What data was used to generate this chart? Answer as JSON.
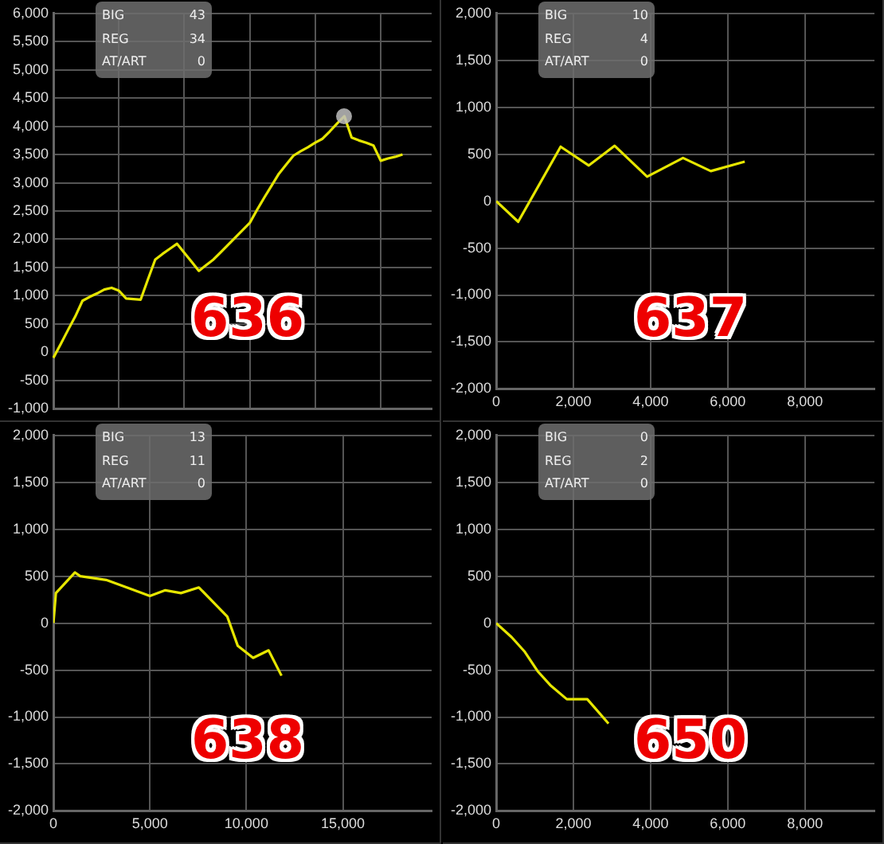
{
  "chart_data": [
    {
      "type": "line",
      "categories": [
        null,
        null,
        null,
        null,
        null,
        null,
        null,
        null,
        null,
        null,
        null,
        null,
        null,
        null,
        null,
        null,
        null,
        null,
        null,
        null,
        null,
        null,
        null,
        null,
        null,
        null,
        null,
        null,
        null,
        null,
        null,
        null,
        null,
        null,
        null,
        null,
        null,
        null,
        null,
        null,
        null,
        null,
        null,
        null,
        null,
        null,
        null,
        null,
        null,
        null,
        null,
        null,
        null
      ],
      "series": [
        {
          "color": "#e6e600",
          "values": [
            -100,
            140,
            390,
            630,
            910,
            980,
            1040,
            1110,
            1140,
            1090,
            950,
            940,
            930,
            1290,
            1640,
            1740,
            1830,
            1920,
            1760,
            1600,
            1440,
            1540,
            1640,
            1770,
            1900,
            2030,
            2160,
            2290,
            2520,
            2740,
            2950,
            3160,
            3320,
            3480,
            3560,
            3630,
            3710,
            3780,
            3910,
            4050,
            4180,
            3800,
            3750,
            3710,
            3660,
            3390,
            3430,
            3460,
            3500,
            null,
            null,
            null,
            null
          ]
        }
      ],
      "ylim": [
        -1000,
        6000
      ],
      "yticks": [
        {
          "value": -1000,
          "label": "-1,000"
        },
        {
          "value": -500,
          "label": "-500"
        },
        {
          "value": 0,
          "label": "0"
        },
        {
          "value": 500,
          "label": "500"
        },
        {
          "value": 1000,
          "label": "1,000"
        },
        {
          "value": 1500,
          "label": "1,500"
        },
        {
          "value": 2000,
          "label": "2,000"
        },
        {
          "value": 2500,
          "label": "2,500"
        },
        {
          "value": 3000,
          "label": "3,000"
        },
        {
          "value": 3500,
          "label": "3,500"
        },
        {
          "value": 4000,
          "label": "4,000"
        },
        {
          "value": 4500,
          "label": "4,500"
        },
        {
          "value": 5000,
          "label": "5,000"
        },
        {
          "value": 5500,
          "label": "5,500"
        },
        {
          "value": 6000,
          "label": "6,000"
        }
      ],
      "tick_labels": "y",
      "grid": true,
      "legend": false,
      "marker": "none",
      "annotations": [
        "BIG",
        "43",
        "REG",
        "34",
        "AT/ART",
        "0",
        "636"
      ]
    },
    {
      "type": "line",
      "x": [
        0,
        570,
        1670,
        2400,
        3070,
        3910,
        4840,
        5560,
        6440
      ],
      "series": [
        {
          "color": "#e6e600",
          "values": [
            0,
            -220,
            580,
            380,
            590,
            260,
            460,
            320,
            420
          ]
        }
      ],
      "xlim": [
        0,
        9800
      ],
      "xticks": [
        {
          "value": 0,
          "label": "0"
        },
        {
          "value": 2000,
          "label": "2,000"
        },
        {
          "value": 4000,
          "label": "4,000"
        },
        {
          "value": 6000,
          "label": "6,000"
        },
        {
          "value": 8000,
          "label": "8,000"
        }
      ],
      "ylim": [
        -2000,
        2000
      ],
      "yticks": [
        {
          "value": -2000,
          "label": "-2,000"
        },
        {
          "value": -1500,
          "label": "-1,500"
        },
        {
          "value": -1000,
          "label": "-1,000"
        },
        {
          "value": -500,
          "label": "-500"
        },
        {
          "value": 0,
          "label": "0"
        },
        {
          "value": 500,
          "label": "500"
        },
        {
          "value": 1000,
          "label": "1,000"
        },
        {
          "value": 1500,
          "label": "1,500"
        },
        {
          "value": 2000,
          "label": "2,000"
        }
      ],
      "grid": true,
      "legend": false,
      "marker": "none",
      "annotations": [
        "BIG",
        "10",
        "REG",
        "4",
        "AT/ART",
        "0",
        "637"
      ]
    },
    {
      "type": "line",
      "x": [
        0,
        130,
        1120,
        1390,
        2730,
        3800,
        5000,
        5800,
        6610,
        7540,
        9010,
        9550,
        10350,
        11150,
        11820
      ],
      "series": [
        {
          "color": "#e6e600",
          "values": [
            0,
            320,
            540,
            500,
            460,
            380,
            290,
            350,
            320,
            380,
            70,
            -240,
            -370,
            -290,
            -560
          ]
        }
      ],
      "xlim": [
        0,
        19600
      ],
      "xticks": [
        {
          "value": 0,
          "label": "0"
        },
        {
          "value": 5000,
          "label": "5,000"
        },
        {
          "value": 10000,
          "label": "10,000"
        },
        {
          "value": 15000,
          "label": "15,000"
        }
      ],
      "ylim": [
        -2000,
        2000
      ],
      "yticks": [
        {
          "value": -2000,
          "label": "-2,000"
        },
        {
          "value": -1500,
          "label": "-1,500"
        },
        {
          "value": -1000,
          "label": "-1,000"
        },
        {
          "value": -500,
          "label": "-500"
        },
        {
          "value": 0,
          "label": "0"
        },
        {
          "value": 500,
          "label": "500"
        },
        {
          "value": 1000,
          "label": "1,000"
        },
        {
          "value": 1500,
          "label": "1,500"
        },
        {
          "value": 2000,
          "label": "2,000"
        }
      ],
      "grid": true,
      "legend": false,
      "marker": "none",
      "annotations": [
        "BIG",
        "13",
        "REG",
        "11",
        "AT/ART",
        "0",
        "638"
      ]
    },
    {
      "type": "line",
      "x": [
        0,
        400,
        730,
        1070,
        1400,
        1830,
        2360,
        2910
      ],
      "series": [
        {
          "color": "#e6e600",
          "values": [
            0,
            -150,
            -300,
            -510,
            -660,
            -810,
            -810,
            -1070
          ]
        }
      ],
      "xlim": [
        0,
        9800
      ],
      "xticks": [
        {
          "value": 0,
          "label": "0"
        },
        {
          "value": 2000,
          "label": "2,000"
        },
        {
          "value": 4000,
          "label": "4,000"
        },
        {
          "value": 6000,
          "label": "6,000"
        },
        {
          "value": 8000,
          "label": "8,000"
        }
      ],
      "ylim": [
        -2000,
        2000
      ],
      "yticks": [
        {
          "value": -2000,
          "label": "-2,000"
        },
        {
          "value": -1500,
          "label": "-1,500"
        },
        {
          "value": -1000,
          "label": "-1,000"
        },
        {
          "value": -500,
          "label": "-500"
        },
        {
          "value": 0,
          "label": "0"
        },
        {
          "value": 500,
          "label": "500"
        },
        {
          "value": 1000,
          "label": "1,000"
        },
        {
          "value": 1500,
          "label": "1,500"
        },
        {
          "value": 2000,
          "label": "2,000"
        }
      ],
      "grid": true,
      "legend": false,
      "marker": "none",
      "annotations": [
        "BIG",
        "0",
        "REG",
        "2",
        "AT/ART",
        "0",
        "650"
      ]
    }
  ]
}
